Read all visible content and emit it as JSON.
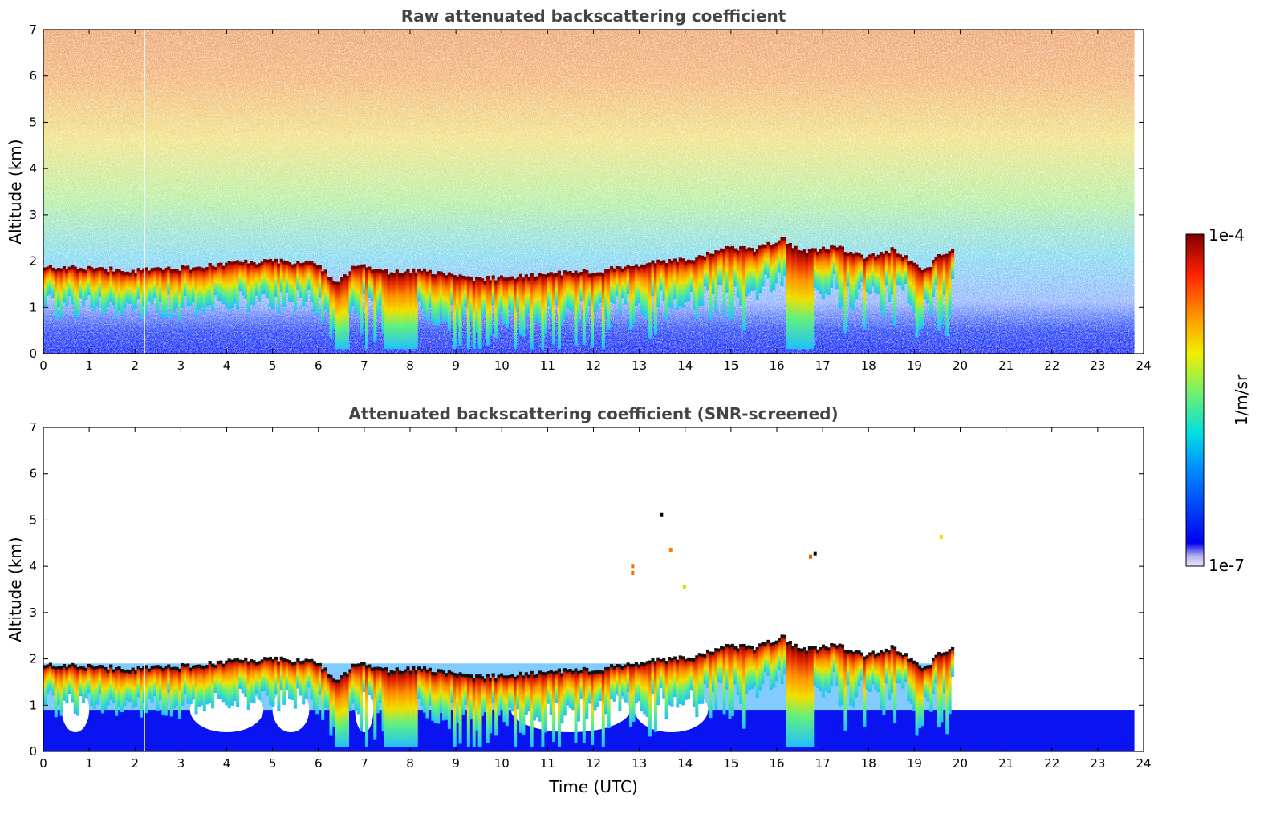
{
  "chart_data": [
    {
      "type": "heatmap",
      "title": "Raw attenuated backscattering coefficient",
      "xlabel": "",
      "ylabel": "Altitude (km)",
      "xlim": [
        0,
        24
      ],
      "ylim": [
        0,
        7
      ],
      "x_ticks": [
        "0",
        "1",
        "2",
        "3",
        "4",
        "5",
        "6",
        "7",
        "8",
        "9",
        "10",
        "11",
        "12",
        "13",
        "14",
        "15",
        "16",
        "17",
        "18",
        "19",
        "20",
        "21",
        "22",
        "23",
        "24"
      ],
      "y_ticks": [
        "0",
        "1",
        "2",
        "3",
        "4",
        "5",
        "6",
        "7"
      ],
      "data_extent_hours": [
        0,
        23.8
      ],
      "cloud_top_km": [
        [
          0,
          1.9
        ],
        [
          0.7,
          1.85
        ],
        [
          2,
          1.8
        ],
        [
          3,
          1.85
        ],
        [
          4,
          1.95
        ],
        [
          5,
          2.0
        ],
        [
          5.9,
          1.95
        ],
        [
          6.4,
          1.5
        ],
        [
          6.8,
          1.95
        ],
        [
          7.2,
          1.8
        ],
        [
          7.6,
          1.75
        ],
        [
          8.2,
          1.8
        ],
        [
          8.8,
          1.7
        ],
        [
          9.4,
          1.6
        ],
        [
          10,
          1.65
        ],
        [
          10.8,
          1.7
        ],
        [
          11.5,
          1.75
        ],
        [
          12.2,
          1.8
        ],
        [
          12.8,
          1.9
        ],
        [
          13.5,
          2.0
        ],
        [
          14.2,
          2.05
        ],
        [
          14.8,
          2.3
        ],
        [
          15.5,
          2.25
        ],
        [
          16.1,
          2.5
        ],
        [
          16.5,
          2.2
        ],
        [
          17.3,
          2.3
        ],
        [
          17.9,
          2.1
        ],
        [
          18.5,
          2.25
        ],
        [
          19.2,
          1.8
        ],
        [
          19.6,
          2.2
        ],
        [
          19.8,
          2.2
        ]
      ],
      "colormap": "jet",
      "color_scale": "log",
      "colorbar": {
        "min_label": "1e-7",
        "max_label": "1e-4",
        "unit_label": "1/m/sr"
      }
    },
    {
      "type": "heatmap",
      "title": "Attenuated backscattering coefficient (SNR-screened)",
      "xlabel": "Time (UTC)",
      "ylabel": "Altitude (km)",
      "xlim": [
        0,
        24
      ],
      "ylim": [
        0,
        7
      ],
      "x_ticks": [
        "0",
        "1",
        "2",
        "3",
        "4",
        "5",
        "6",
        "7",
        "8",
        "9",
        "10",
        "11",
        "12",
        "13",
        "14",
        "15",
        "16",
        "17",
        "18",
        "19",
        "20",
        "21",
        "22",
        "23",
        "24"
      ],
      "y_ticks": [
        "0",
        "1",
        "2",
        "3",
        "4",
        "5",
        "6",
        "7"
      ],
      "data_extent_hours": [
        0,
        23.8
      ],
      "screened_noise_top_km": 0.9,
      "colormap": "jet",
      "color_scale": "log"
    }
  ]
}
